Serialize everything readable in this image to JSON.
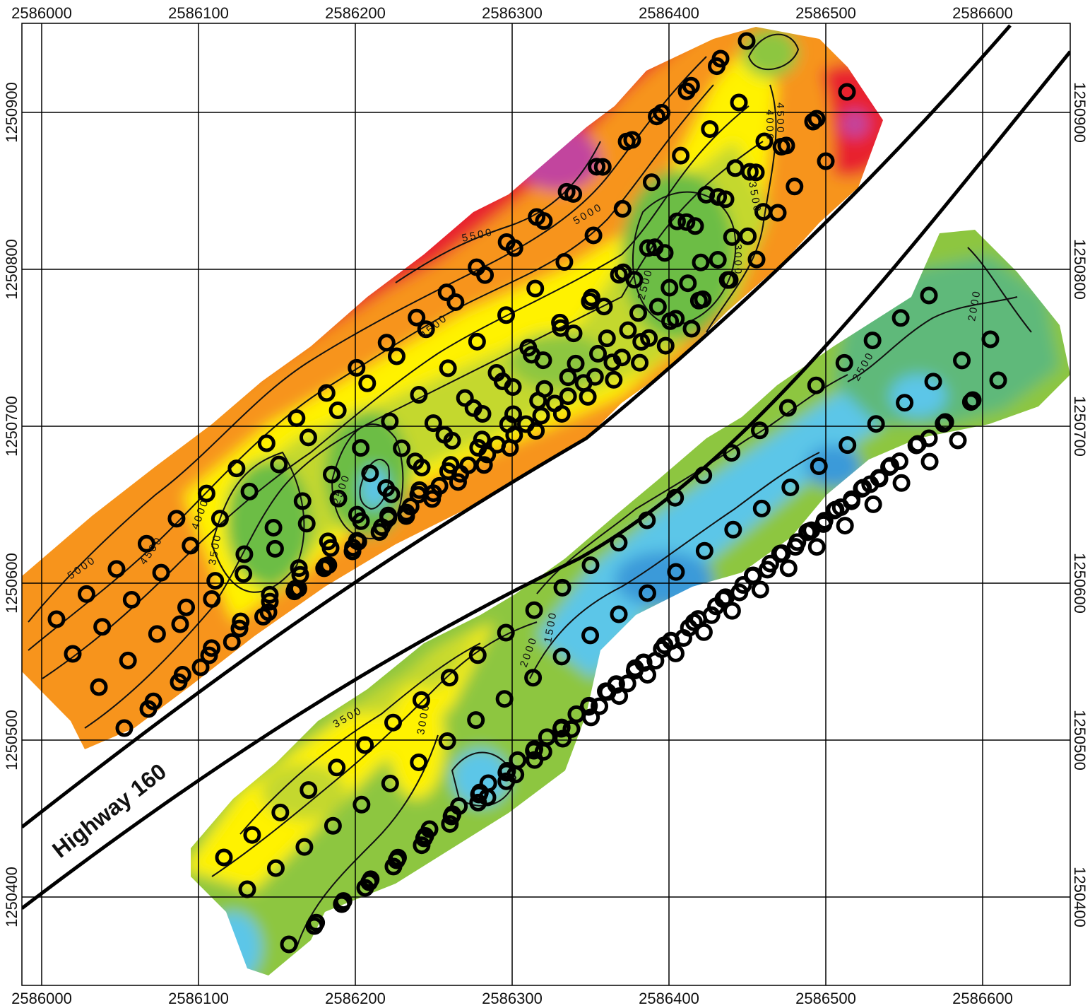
{
  "map": {
    "x_ticks": [
      "2586000",
      "2586100",
      "2586200",
      "2586300",
      "2586400",
      "2586500",
      "2586600"
    ],
    "y_ticks": [
      "1250900",
      "1250800",
      "1250700",
      "1250600",
      "1250500",
      "1250400"
    ],
    "road_label": "Highway 160",
    "contour_labels": [
      "5500",
      "5000",
      "4500",
      "4000",
      "3500",
      "3000",
      "2500",
      "2000",
      "1500"
    ],
    "colors": {
      "magenta": "#c2459e",
      "red": "#e8202f",
      "red_orange": "#ee4d24",
      "orange": "#f7941d",
      "light_orange": "#fcb514",
      "yellow": "#fff200",
      "yellow_green": "#c4d82e",
      "green": "#8dc63f",
      "green_mid": "#6cbd45",
      "teal_green": "#5fb97a",
      "cyan": "#5bc6e8",
      "blue": "#3a9ad9"
    }
  }
}
